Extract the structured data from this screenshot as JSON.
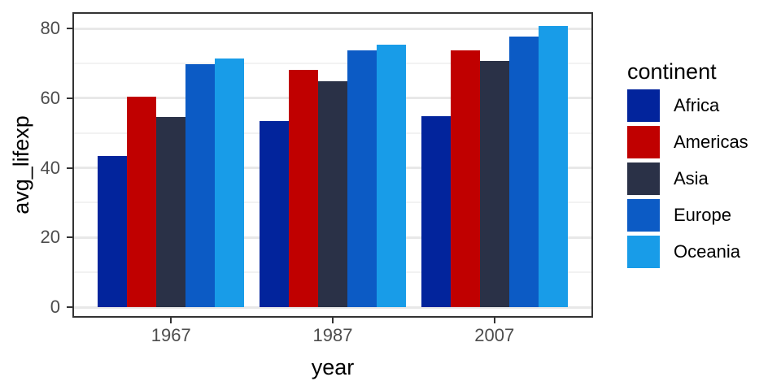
{
  "chart_data": {
    "type": "bar",
    "title": "",
    "xlabel": "year",
    "ylabel": "avg_lifexp",
    "categories": [
      "1967",
      "1987",
      "2007"
    ],
    "series": [
      {
        "name": "Africa",
        "color": "#02249c",
        "values": [
          43.32,
          53.34,
          54.81
        ]
      },
      {
        "name": "Americas",
        "color": "#c00000",
        "values": [
          60.41,
          68.09,
          73.61
        ]
      },
      {
        "name": "Asia",
        "color": "#2a3147",
        "values": [
          54.66,
          64.85,
          70.73
        ]
      },
      {
        "name": "Europe",
        "color": "#0c5bc5",
        "values": [
          69.74,
          73.64,
          77.65
        ]
      },
      {
        "name": "Oceania",
        "color": "#189ce8",
        "values": [
          71.31,
          75.32,
          80.72
        ]
      }
    ],
    "ylim": [
      0,
      80
    ],
    "yticks": [
      0,
      20,
      40,
      60,
      80
    ],
    "yticks_minor": [
      10,
      30,
      50,
      70
    ],
    "grid": true,
    "legend": {
      "title": "continent",
      "position": "right"
    }
  },
  "style": {
    "grid_major_color": "#e8e8e8",
    "grid_minor_color": "#f2f2f2",
    "panel_border_color": "#333333",
    "tick_color": "#333333",
    "tick_text_color": "#4d4d4d",
    "title_text_color": "#000000",
    "background": "#ffffff"
  }
}
